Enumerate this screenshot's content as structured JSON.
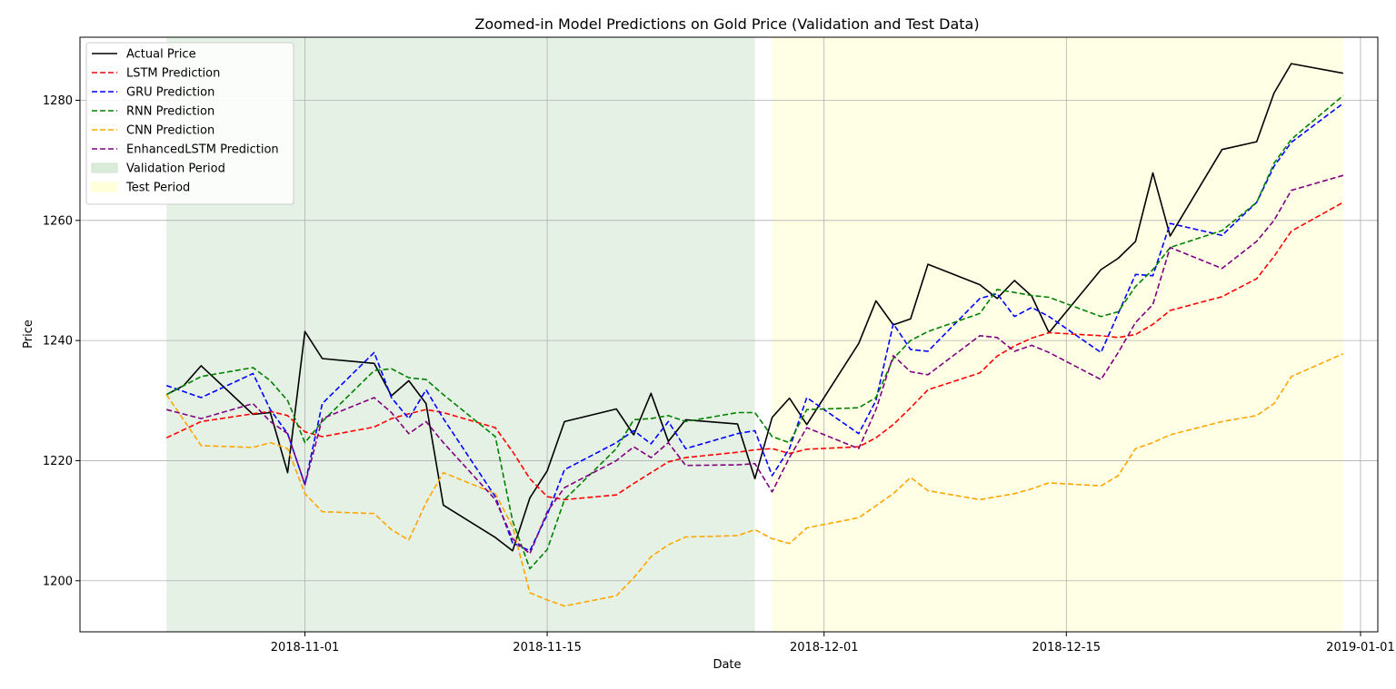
{
  "chart_data": {
    "type": "line",
    "title": "Zoomed-in Model Predictions on Gold Price (Validation and Test Data)",
    "xlabel": "Date",
    "ylabel": "Price",
    "x_type": "date",
    "xlim": [
      "2018-10-19",
      "2019-01-02"
    ],
    "ylim": [
      1191.5,
      1290.5
    ],
    "x_ticks": [
      "2018-11-01",
      "2018-11-15",
      "2018-12-01",
      "2018-12-15",
      "2019-01-01"
    ],
    "y_ticks": [
      1200,
      1220,
      1240,
      1260,
      1280
    ],
    "grid": true,
    "legend_position": "top-left",
    "shaded_regions": [
      {
        "name": "Validation Period",
        "start": "2018-10-24",
        "end": "2018-11-27",
        "color": "#cfe6cf"
      },
      {
        "name": "Test Period",
        "start": "2018-11-28",
        "end": "2018-12-31",
        "color": "#ffffd2"
      }
    ],
    "series": [
      {
        "name": "Actual Price",
        "color": "#000000",
        "dash": "solid",
        "x": [
          "2018-10-24",
          "2018-10-25",
          "2018-10-26",
          "2018-10-29",
          "2018-10-30",
          "2018-10-31",
          "2018-11-01",
          "2018-11-02",
          "2018-11-05",
          "2018-11-06",
          "2018-11-07",
          "2018-11-08",
          "2018-11-09",
          "2018-11-12",
          "2018-11-13",
          "2018-11-14",
          "2018-11-15",
          "2018-11-16",
          "2018-11-19",
          "2018-11-20",
          "2018-11-21",
          "2018-11-22",
          "2018-11-23",
          "2018-11-26",
          "2018-11-27",
          "2018-11-28",
          "2018-11-29",
          "2018-11-30",
          "2018-12-03",
          "2018-12-04",
          "2018-12-05",
          "2018-12-06",
          "2018-12-07",
          "2018-12-10",
          "2018-12-11",
          "2018-12-12",
          "2018-12-13",
          "2018-12-14",
          "2018-12-17",
          "2018-12-18",
          "2018-12-19",
          "2018-12-20",
          "2018-12-21",
          "2018-12-24",
          "2018-12-26",
          "2018-12-27",
          "2018-12-28",
          "2018-12-31"
        ],
        "y": [
          1231.0,
          1232.5,
          1235.8,
          1227.7,
          1228.0,
          1218.0,
          1241.5,
          1237.0,
          1236.2,
          1230.8,
          1233.3,
          1229.5,
          1212.6,
          1207.2,
          1205.0,
          1213.8,
          1218.3,
          1226.5,
          1228.6,
          1224.3,
          1231.2,
          1223.2,
          1226.8,
          1226.1,
          1217.0,
          1227.2,
          1230.4,
          1226.0,
          1239.5,
          1246.6,
          1242.6,
          1243.6,
          1252.7,
          1249.3,
          1247.0,
          1250.0,
          1247.4,
          1241.3,
          1251.8,
          1253.7,
          1256.5,
          1267.9,
          1257.4,
          1271.8,
          1273.1,
          1281.2,
          1286.1,
          1284.5
        ]
      },
      {
        "name": "LSTM Prediction",
        "color": "#ff0000",
        "dash": "dashed",
        "x": [
          "2018-10-24",
          "2018-10-26",
          "2018-10-29",
          "2018-10-30",
          "2018-10-31",
          "2018-11-01",
          "2018-11-02",
          "2018-11-05",
          "2018-11-06",
          "2018-11-07",
          "2018-11-08",
          "2018-11-09",
          "2018-11-12",
          "2018-11-13",
          "2018-11-14",
          "2018-11-15",
          "2018-11-16",
          "2018-11-19",
          "2018-11-20",
          "2018-11-21",
          "2018-11-22",
          "2018-11-23",
          "2018-11-26",
          "2018-11-27",
          "2018-11-28",
          "2018-11-29",
          "2018-11-30",
          "2018-12-03",
          "2018-12-04",
          "2018-12-05",
          "2018-12-06",
          "2018-12-07",
          "2018-12-10",
          "2018-12-11",
          "2018-12-12",
          "2018-12-13",
          "2018-12-14",
          "2018-12-17",
          "2018-12-18",
          "2018-12-19",
          "2018-12-20",
          "2018-12-21",
          "2018-12-24",
          "2018-12-26",
          "2018-12-27",
          "2018-12-28",
          "2018-12-31"
        ],
        "y": [
          1223.8,
          1226.5,
          1227.8,
          1228.2,
          1227.5,
          1224.8,
          1224.0,
          1225.6,
          1227.0,
          1227.8,
          1228.5,
          1228.0,
          1225.5,
          1221.5,
          1217.0,
          1214.0,
          1213.5,
          1214.3,
          1216.2,
          1218.0,
          1219.8,
          1220.5,
          1221.4,
          1221.8,
          1222.0,
          1221.2,
          1221.9,
          1222.3,
          1223.8,
          1226.0,
          1228.8,
          1231.8,
          1234.6,
          1237.4,
          1239.1,
          1240.4,
          1241.3,
          1240.8,
          1240.5,
          1241.0,
          1242.7,
          1245.0,
          1247.3,
          1250.3,
          1254.0,
          1258.2,
          1263.0
        ]
      },
      {
        "name": "GRU Prediction",
        "color": "#0000ff",
        "dash": "dashed",
        "x": [
          "2018-10-24",
          "2018-10-26",
          "2018-10-29",
          "2018-10-30",
          "2018-10-31",
          "2018-11-01",
          "2018-11-02",
          "2018-11-05",
          "2018-11-06",
          "2018-11-07",
          "2018-11-08",
          "2018-11-09",
          "2018-11-12",
          "2018-11-13",
          "2018-11-14",
          "2018-11-15",
          "2018-11-16",
          "2018-11-19",
          "2018-11-20",
          "2018-11-21",
          "2018-11-22",
          "2018-11-23",
          "2018-11-26",
          "2018-11-27",
          "2018-11-28",
          "2018-11-29",
          "2018-11-30",
          "2018-12-03",
          "2018-12-04",
          "2018-12-05",
          "2018-12-06",
          "2018-12-07",
          "2018-12-10",
          "2018-12-11",
          "2018-12-12",
          "2018-12-13",
          "2018-12-14",
          "2018-12-17",
          "2018-12-18",
          "2018-12-19",
          "2018-12-20",
          "2018-12-21",
          "2018-12-24",
          "2018-12-26",
          "2018-12-27",
          "2018-12-28",
          "2018-12-31"
        ],
        "y": [
          1232.5,
          1230.5,
          1234.5,
          1228.5,
          1224.5,
          1216.0,
          1229.5,
          1238.0,
          1230.5,
          1227.0,
          1231.8,
          1227.0,
          1214.0,
          1206.3,
          1205.0,
          1211.0,
          1218.5,
          1223.0,
          1225.0,
          1222.8,
          1226.5,
          1222.0,
          1224.5,
          1225.0,
          1217.5,
          1222.0,
          1230.5,
          1224.5,
          1230.0,
          1242.8,
          1238.5,
          1238.2,
          1247.0,
          1247.8,
          1244.0,
          1245.5,
          1244.0,
          1238.0,
          1244.5,
          1251.0,
          1250.8,
          1259.5,
          1257.5,
          1263.0,
          1269.0,
          1273.0,
          1279.5
        ]
      },
      {
        "name": "RNN Prediction",
        "color": "#008000",
        "dash": "dashed",
        "x": [
          "2018-10-24",
          "2018-10-26",
          "2018-10-29",
          "2018-10-30",
          "2018-10-31",
          "2018-11-01",
          "2018-11-02",
          "2018-11-05",
          "2018-11-06",
          "2018-11-07",
          "2018-11-08",
          "2018-11-09",
          "2018-11-12",
          "2018-11-13",
          "2018-11-14",
          "2018-11-15",
          "2018-11-16",
          "2018-11-19",
          "2018-11-20",
          "2018-11-21",
          "2018-11-22",
          "2018-11-23",
          "2018-11-26",
          "2018-11-27",
          "2018-11-28",
          "2018-11-29",
          "2018-11-30",
          "2018-12-03",
          "2018-12-04",
          "2018-12-05",
          "2018-12-06",
          "2018-12-07",
          "2018-12-10",
          "2018-12-11",
          "2018-12-12",
          "2018-12-13",
          "2018-12-14",
          "2018-12-17",
          "2018-12-18",
          "2018-12-19",
          "2018-12-20",
          "2018-12-21",
          "2018-12-24",
          "2018-12-26",
          "2018-12-27",
          "2018-12-28",
          "2018-12-31"
        ],
        "y": [
          1231.0,
          1234.0,
          1235.5,
          1233.3,
          1230.0,
          1223.0,
          1226.5,
          1235.0,
          1235.3,
          1233.8,
          1233.5,
          1231.0,
          1224.0,
          1210.0,
          1202.0,
          1205.2,
          1213.5,
          1222.0,
          1226.8,
          1227.0,
          1227.5,
          1226.5,
          1228.0,
          1228.0,
          1224.0,
          1223.0,
          1228.5,
          1228.8,
          1230.5,
          1237.0,
          1240.0,
          1241.5,
          1244.5,
          1248.5,
          1248.0,
          1247.5,
          1247.2,
          1244.0,
          1244.8,
          1249.0,
          1251.8,
          1255.5,
          1258.3,
          1263.0,
          1269.5,
          1273.5,
          1280.8
        ]
      },
      {
        "name": "CNN Prediction",
        "color": "#ffa500",
        "dash": "dashed",
        "x": [
          "2018-10-24",
          "2018-10-26",
          "2018-10-29",
          "2018-10-30",
          "2018-10-31",
          "2018-11-01",
          "2018-11-02",
          "2018-11-05",
          "2018-11-06",
          "2018-11-07",
          "2018-11-08",
          "2018-11-09",
          "2018-11-12",
          "2018-11-13",
          "2018-11-14",
          "2018-11-15",
          "2018-11-16",
          "2018-11-19",
          "2018-11-20",
          "2018-11-21",
          "2018-11-22",
          "2018-11-23",
          "2018-11-26",
          "2018-11-27",
          "2018-11-28",
          "2018-11-29",
          "2018-11-30",
          "2018-12-03",
          "2018-12-04",
          "2018-12-05",
          "2018-12-06",
          "2018-12-07",
          "2018-12-10",
          "2018-12-11",
          "2018-12-12",
          "2018-12-13",
          "2018-12-14",
          "2018-12-17",
          "2018-12-18",
          "2018-12-19",
          "2018-12-20",
          "2018-12-21",
          "2018-12-24",
          "2018-12-26",
          "2018-12-27",
          "2018-12-28",
          "2018-12-31"
        ],
        "y": [
          1231.0,
          1222.5,
          1222.2,
          1223.0,
          1222.0,
          1214.5,
          1211.5,
          1211.2,
          1208.5,
          1206.8,
          1213.0,
          1218.0,
          1214.5,
          1209.0,
          1198.0,
          1196.8,
          1195.8,
          1197.5,
          1200.5,
          1204.0,
          1206.0,
          1207.3,
          1207.5,
          1208.5,
          1207.0,
          1206.2,
          1208.8,
          1210.5,
          1212.5,
          1214.5,
          1217.2,
          1215.0,
          1213.5,
          1214.0,
          1214.5,
          1215.3,
          1216.3,
          1215.8,
          1217.5,
          1222.0,
          1223.0,
          1224.3,
          1226.5,
          1227.5,
          1229.5,
          1234.0,
          1237.8
        ]
      },
      {
        "name": "EnhancedLSTM Prediction",
        "color": "#800080",
        "dash": "dashed",
        "x": [
          "2018-10-24",
          "2018-10-26",
          "2018-10-29",
          "2018-10-30",
          "2018-10-31",
          "2018-11-01",
          "2018-11-02",
          "2018-11-05",
          "2018-11-06",
          "2018-11-07",
          "2018-11-08",
          "2018-11-09",
          "2018-11-12",
          "2018-11-13",
          "2018-11-14",
          "2018-11-15",
          "2018-11-16",
          "2018-11-19",
          "2018-11-20",
          "2018-11-21",
          "2018-11-22",
          "2018-11-23",
          "2018-11-26",
          "2018-11-27",
          "2018-11-28",
          "2018-11-29",
          "2018-11-30",
          "2018-12-03",
          "2018-12-04",
          "2018-12-05",
          "2018-12-06",
          "2018-12-07",
          "2018-12-10",
          "2018-12-11",
          "2018-12-12",
          "2018-12-13",
          "2018-12-14",
          "2018-12-17",
          "2018-12-18",
          "2018-12-19",
          "2018-12-20",
          "2018-12-21",
          "2018-12-24",
          "2018-12-26",
          "2018-12-27",
          "2018-12-28",
          "2018-12-31"
        ],
        "y": [
          1228.5,
          1227.0,
          1229.5,
          1226.5,
          1224.5,
          1216.0,
          1227.0,
          1230.5,
          1228.0,
          1224.5,
          1226.5,
          1223.0,
          1213.5,
          1207.0,
          1204.5,
          1211.5,
          1215.5,
          1220.0,
          1222.3,
          1220.5,
          1223.0,
          1219.2,
          1219.3,
          1219.5,
          1214.8,
          1220.5,
          1225.5,
          1222.0,
          1228.5,
          1237.5,
          1234.8,
          1234.3,
          1240.8,
          1240.5,
          1238.2,
          1239.2,
          1238.0,
          1233.5,
          1238.0,
          1243.0,
          1246.0,
          1255.5,
          1252.0,
          1256.5,
          1260.0,
          1265.0,
          1267.5
        ]
      }
    ]
  }
}
